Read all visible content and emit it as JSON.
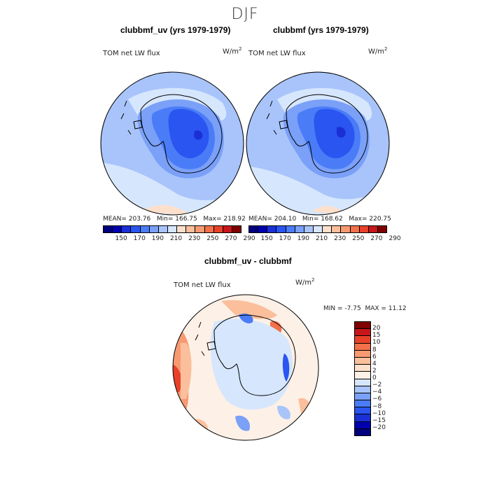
{
  "season": "DJF",
  "panels": [
    {
      "title": "clubbmf_uv (yrs 1979-1979)",
      "variable": "TOM net LW flux",
      "units_base": "W/m",
      "units_exp": "2",
      "mean_label": "MEAN=",
      "mean": "203.76",
      "min_label": "Min=",
      "min": "166.75",
      "max_label": "Max=",
      "max": "218.92"
    },
    {
      "title": "clubbmf (yrs 1979-1979)",
      "variable": "TOM net LW flux",
      "units_base": "W/m",
      "units_exp": "2",
      "mean_label": "MEAN=",
      "mean": "204.10",
      "min_label": "Min=",
      "min": "168.62",
      "max_label": "Max=",
      "max": "220.75"
    }
  ],
  "abs_colorbar": {
    "labels": [
      "150",
      "170",
      "190",
      "210",
      "230",
      "250",
      "270",
      "290"
    ],
    "colors": [
      "#00007f",
      "#0000b0",
      "#1a30d6",
      "#2a55f0",
      "#4a7cf7",
      "#7aa0f8",
      "#a8c4fb",
      "#d6e6fd",
      "#fde0cc",
      "#fbbf9c",
      "#f79a72",
      "#f2704a",
      "#e8412a",
      "#c8161b",
      "#7f0000"
    ]
  },
  "diff_panel": {
    "title": "clubbmf_uv - clubbmf",
    "variable": "TOM net LW flux",
    "units_base": "W/m",
    "units_exp": "2",
    "min_label": "MIN =",
    "min": "-7.75",
    "max_label": "MAX =",
    "max": "11.12"
  },
  "diff_colorbar": {
    "labels": [
      "20",
      "15",
      "10",
      "8",
      "6",
      "4",
      "2",
      "0",
      "−2",
      "−4",
      "−6",
      "−8",
      "−10",
      "−15",
      "−20"
    ],
    "colors": [
      "#7f0000",
      "#c8161b",
      "#e8412a",
      "#f2704a",
      "#f79a72",
      "#fbbf9c",
      "#fde0cc",
      "#fdf0e6",
      "#d6e6fd",
      "#a8c4fb",
      "#7aa0f8",
      "#4a7cf7",
      "#2a55f0",
      "#1a30d6",
      "#0000b0",
      "#00007f"
    ]
  }
}
